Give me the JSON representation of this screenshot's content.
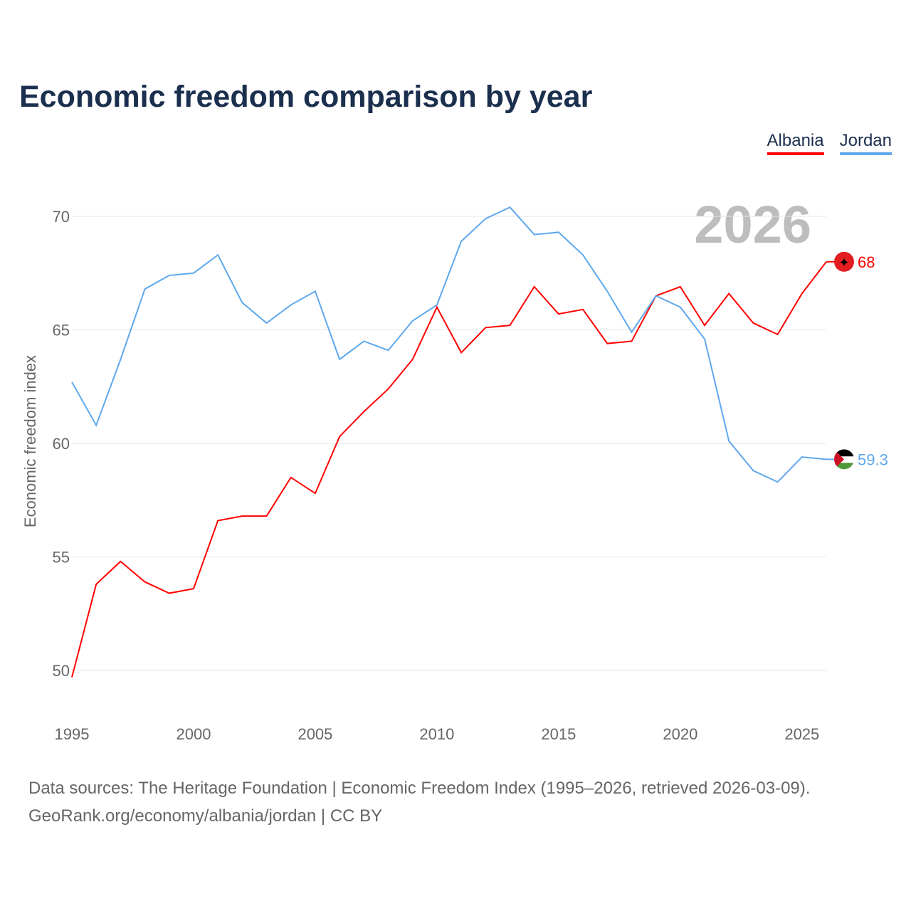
{
  "title": "Economic freedom comparison by year",
  "legend": [
    "Albania",
    "Jordan"
  ],
  "colors": {
    "Albania": "#ff0000",
    "Jordan": "#5ea8ec"
  },
  "year_watermark": "2026",
  "source_line1": "Data sources: The Heritage Foundation | Economic Freedom Index (1995–2026, retrieved 2026-03-09).",
  "source_line2": "GeoRank.org/economy/albania/jordan | CC BY",
  "chart_data": {
    "type": "line",
    "title": "Economic freedom comparison by year",
    "xlabel": "",
    "ylabel": "Economic freedom index",
    "xlim": [
      1995,
      2026
    ],
    "ylim": [
      50,
      70
    ],
    "xticks": [
      1995,
      2000,
      2005,
      2010,
      2015,
      2020,
      2025
    ],
    "yticks": [
      50,
      55,
      60,
      65,
      70
    ],
    "grid": true,
    "legend_position": "top-right",
    "x": [
      1995,
      1996,
      1997,
      1998,
      1999,
      2000,
      2001,
      2002,
      2003,
      2004,
      2005,
      2006,
      2007,
      2008,
      2009,
      2010,
      2011,
      2012,
      2013,
      2014,
      2015,
      2016,
      2017,
      2018,
      2019,
      2020,
      2021,
      2022,
      2023,
      2024,
      2025,
      2026
    ],
    "series": [
      {
        "name": "Albania",
        "end_label": "68",
        "values": [
          49.7,
          53.8,
          54.8,
          53.9,
          53.4,
          53.6,
          56.6,
          56.8,
          56.8,
          58.5,
          57.8,
          60.3,
          61.4,
          62.4,
          63.7,
          66.0,
          64.0,
          65.1,
          65.2,
          66.9,
          65.7,
          65.9,
          64.4,
          64.5,
          66.5,
          66.9,
          65.2,
          66.6,
          65.3,
          64.8,
          66.6,
          68.0
        ]
      },
      {
        "name": "Jordan",
        "end_label": "59.3",
        "values": [
          62.7,
          60.8,
          63.7,
          66.8,
          67.4,
          67.5,
          68.3,
          66.2,
          65.3,
          66.1,
          66.7,
          63.7,
          64.5,
          64.1,
          65.4,
          66.1,
          68.9,
          69.9,
          70.4,
          69.2,
          69.3,
          68.3,
          66.7,
          64.9,
          66.5,
          66.0,
          64.6,
          60.1,
          58.8,
          58.3,
          59.4,
          59.3
        ]
      }
    ]
  }
}
